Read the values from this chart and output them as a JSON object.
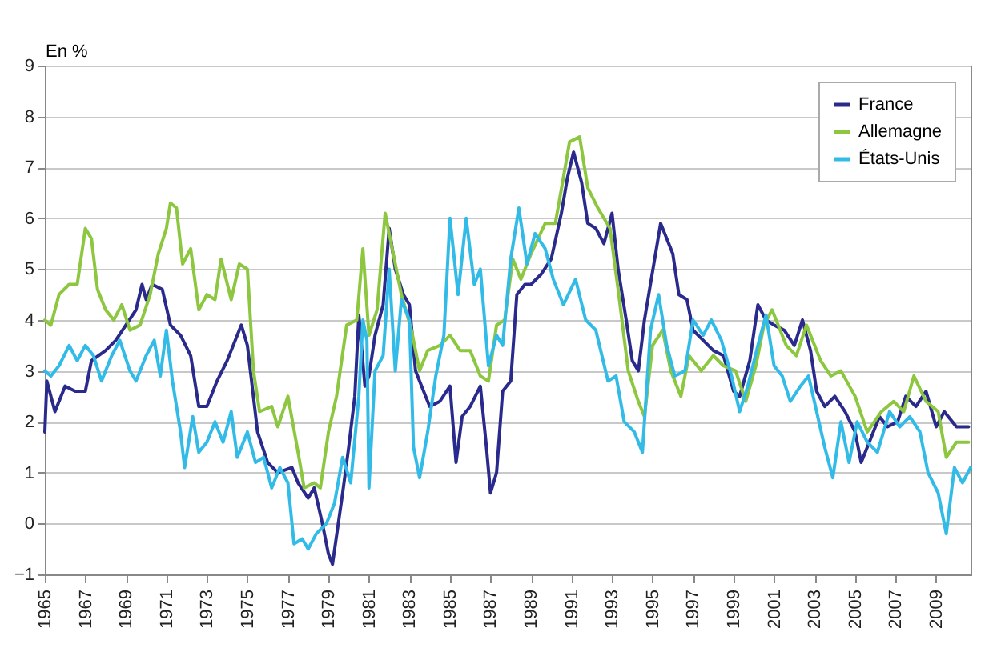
{
  "chart_data": {
    "type": "line",
    "ylabel": "En %",
    "xlim": [
      1965,
      2010.7
    ],
    "xticks": [
      1965,
      1967,
      1969,
      1971,
      1973,
      1975,
      1977,
      1979,
      1981,
      1983,
      1985,
      1987,
      1989,
      1991,
      1993,
      1995,
      1997,
      1999,
      2001,
      2003,
      2005,
      2007,
      2009
    ],
    "ylim": [
      -1,
      9
    ],
    "yticks": [
      -1,
      0,
      1,
      2,
      3,
      4,
      5,
      6,
      7,
      8,
      9
    ],
    "grid": "y",
    "legend": "top right",
    "marker": "none",
    "line_style": "solid",
    "series": [
      {
        "name": "France",
        "color": "#2a2a8c",
        "x": [
          1965.0,
          1965.1,
          1965.5,
          1966,
          1966.5,
          1967,
          1967.3,
          1968,
          1968.5,
          1969,
          1969.5,
          1969.8,
          1970,
          1970.3,
          1970.8,
          1971.2,
          1971.7,
          1972.2,
          1972.6,
          1973,
          1973.5,
          1974,
          1974.5,
          1974.7,
          1975,
          1975.5,
          1976,
          1976.5,
          1977.2,
          1977.5,
          1978,
          1978.3,
          1978.7,
          1979,
          1979.2,
          1979.7,
          1980,
          1980.3,
          1980.5,
          1980.8,
          1981,
          1981.3,
          1981.7,
          1982,
          1982.3,
          1982.7,
          1983,
          1983.3,
          1983.6,
          1984,
          1984.5,
          1985,
          1985.3,
          1985.6,
          1986,
          1986.5,
          1986.8,
          1987,
          1987.3,
          1987.6,
          1988,
          1988.3,
          1988.7,
          1989,
          1989.5,
          1990,
          1990.5,
          1990.8,
          1991.1,
          1991.5,
          1991.8,
          1992.2,
          1992.6,
          1993,
          1993.3,
          1993.7,
          1994,
          1994.3,
          1994.6,
          1995.4,
          1995.8,
          1996,
          1996.3,
          1996.7,
          1997,
          1997.5,
          1998,
          1998.5,
          1999,
          1999.3,
          1999.8,
          2000.2,
          2000.6,
          2001,
          2001.5,
          2002,
          2002.4,
          2002.8,
          2003.1,
          2003.5,
          2004,
          2004.5,
          2005,
          2005.3,
          2005.7,
          2006.2,
          2006.6,
          2007.1,
          2007.5,
          2008,
          2008.5,
          2009,
          2009.4,
          2010,
          2010.6
        ],
        "values": [
          1.8,
          2.8,
          2.2,
          2.7,
          2.6,
          2.6,
          3.2,
          3.4,
          3.6,
          3.9,
          4.2,
          4.7,
          4.4,
          4.7,
          4.6,
          3.9,
          3.7,
          3.3,
          2.3,
          2.3,
          2.8,
          3.2,
          3.7,
          3.9,
          3.5,
          1.8,
          1.2,
          1.0,
          1.1,
          0.8,
          0.5,
          0.7,
          0.0,
          -0.6,
          -0.8,
          0.6,
          1.5,
          2.5,
          4.1,
          2.7,
          2.9,
          3.7,
          4.3,
          5.8,
          5.0,
          4.5,
          4.3,
          3.0,
          2.7,
          2.3,
          2.4,
          2.7,
          1.2,
          2.1,
          2.3,
          2.7,
          1.5,
          0.6,
          1.0,
          2.6,
          2.8,
          4.5,
          4.7,
          4.7,
          4.9,
          5.2,
          6.1,
          6.8,
          7.3,
          6.7,
          5.9,
          5.8,
          5.5,
          6.1,
          5.0,
          4.0,
          3.2,
          3.0,
          4.0,
          5.9,
          5.5,
          5.3,
          4.5,
          4.4,
          3.8,
          3.6,
          3.4,
          3.3,
          2.6,
          2.5,
          3.2,
          4.3,
          4.0,
          3.9,
          3.8,
          3.5,
          4.0,
          3.4,
          2.6,
          2.3,
          2.5,
          2.2,
          1.8,
          1.2,
          1.6,
          2.1,
          1.9,
          2.0,
          2.5,
          2.3,
          2.6,
          1.9,
          2.2,
          1.9,
          1.9
        ]
      },
      {
        "name": "Allemagne",
        "color": "#8dc63f",
        "x": [
          1965.0,
          1965.3,
          1965.7,
          1966.2,
          1966.6,
          1967,
          1967.3,
          1967.6,
          1968,
          1968.4,
          1968.8,
          1969.2,
          1969.7,
          1970.2,
          1970.6,
          1971,
          1971.2,
          1971.5,
          1971.8,
          1972.2,
          1972.6,
          1973,
          1973.4,
          1973.7,
          1974.2,
          1974.6,
          1975,
          1975.3,
          1975.6,
          1976.2,
          1976.5,
          1977,
          1977.5,
          1977.8,
          1978.3,
          1978.6,
          1979,
          1979.4,
          1979.9,
          1980.4,
          1980.7,
          1981,
          1981.4,
          1981.8,
          1982.2,
          1982.6,
          1983.1,
          1983.5,
          1983.9,
          1984.5,
          1985,
          1985.5,
          1986,
          1986.5,
          1986.9,
          1987.3,
          1987.7,
          1988.1,
          1988.5,
          1989,
          1989.7,
          1990.2,
          1990.6,
          1990.9,
          1991.4,
          1991.8,
          1992.3,
          1992.9,
          1993.3,
          1993.8,
          1994.3,
          1994.6,
          1995,
          1995.5,
          1995.9,
          1996.4,
          1996.8,
          1997.4,
          1998,
          1998.5,
          1999.1,
          1999.6,
          2000.1,
          2000.5,
          2000.9,
          2001.6,
          2002.1,
          2002.6,
          2003.3,
          2003.8,
          2004.3,
          2005,
          2005.6,
          2006.3,
          2006.9,
          2007.4,
          2007.9,
          2008.5,
          2009.1,
          2009.5,
          2010,
          2010.6
        ],
        "values": [
          4.0,
          3.9,
          4.5,
          4.7,
          4.7,
          5.8,
          5.6,
          4.6,
          4.2,
          4.0,
          4.3,
          3.8,
          3.9,
          4.5,
          5.3,
          5.8,
          6.3,
          6.2,
          5.1,
          5.4,
          4.2,
          4.5,
          4.4,
          5.2,
          4.4,
          5.1,
          5.0,
          3.0,
          2.2,
          2.3,
          1.9,
          2.5,
          1.4,
          0.7,
          0.8,
          0.7,
          1.8,
          2.5,
          3.9,
          4.0,
          5.4,
          3.7,
          4.2,
          6.1,
          5.3,
          4.5,
          3.8,
          3.0,
          3.4,
          3.5,
          3.7,
          3.4,
          3.4,
          2.9,
          2.8,
          3.9,
          4.0,
          5.2,
          4.8,
          5.3,
          5.9,
          5.9,
          6.8,
          7.5,
          7.6,
          6.6,
          6.2,
          5.8,
          4.6,
          3.0,
          2.4,
          2.1,
          3.5,
          3.8,
          3.0,
          2.5,
          3.3,
          3.0,
          3.3,
          3.1,
          3.0,
          2.4,
          3.1,
          3.9,
          4.2,
          3.5,
          3.3,
          3.9,
          3.2,
          2.9,
          3.0,
          2.5,
          1.8,
          2.2,
          2.4,
          2.2,
          2.9,
          2.4,
          2.2,
          1.3,
          1.6,
          1.6
        ]
      },
      {
        "name": "États-Unis",
        "color": "#33bbe8",
        "x": [
          1965,
          1965.3,
          1965.7,
          1966.2,
          1966.6,
          1967,
          1967.4,
          1967.8,
          1968.3,
          1968.7,
          1969.2,
          1969.5,
          1970,
          1970.4,
          1970.7,
          1971,
          1971.3,
          1971.7,
          1971.9,
          1972.3,
          1972.6,
          1973,
          1973.4,
          1973.8,
          1974.2,
          1974.5,
          1975,
          1975.4,
          1975.8,
          1976.2,
          1976.6,
          1977,
          1977.3,
          1977.7,
          1978,
          1978.4,
          1978.9,
          1979.3,
          1979.7,
          1980.1,
          1980.5,
          1980.7,
          1980.9,
          1981,
          1981.3,
          1981.7,
          1982,
          1982.3,
          1982.6,
          1983,
          1983.2,
          1983.5,
          1983.9,
          1984.3,
          1984.7,
          1985,
          1985.4,
          1985.8,
          1986.2,
          1986.5,
          1986.9,
          1987.3,
          1987.6,
          1988,
          1988.4,
          1988.8,
          1989.2,
          1989.7,
          1990.1,
          1990.6,
          1991.2,
          1991.7,
          1992.2,
          1992.8,
          1993.2,
          1993.6,
          1994.1,
          1994.5,
          1994.9,
          1995.3,
          1995.7,
          1996.1,
          1996.6,
          1997,
          1997.5,
          1997.9,
          1998.4,
          1998.9,
          1999.3,
          1999.7,
          2000.2,
          2000.6,
          2001,
          2001.4,
          2001.8,
          2002.3,
          2002.7,
          2003.1,
          2003.5,
          2003.9,
          2004.3,
          2004.7,
          2005.1,
          2005.6,
          2006.1,
          2006.7,
          2007.2,
          2007.7,
          2008.2,
          2008.6,
          2009.1,
          2009.5,
          2009.9,
          2010.3,
          2010.7
        ],
        "values": [
          3.0,
          2.9,
          3.1,
          3.5,
          3.2,
          3.5,
          3.3,
          2.8,
          3.3,
          3.6,
          3.0,
          2.8,
          3.3,
          3.6,
          2.9,
          3.8,
          2.8,
          1.8,
          1.1,
          2.1,
          1.4,
          1.6,
          2.0,
          1.6,
          2.2,
          1.3,
          1.8,
          1.2,
          1.3,
          0.7,
          1.1,
          0.8,
          -0.4,
          -0.3,
          -0.5,
          -0.2,
          0.0,
          0.4,
          1.3,
          0.8,
          2.5,
          4.0,
          3.6,
          0.7,
          3.0,
          3.3,
          5.0,
          3.0,
          4.4,
          4.0,
          1.5,
          0.9,
          1.8,
          2.9,
          3.7,
          6.0,
          4.5,
          6.0,
          4.7,
          5.0,
          3.1,
          3.7,
          3.5,
          5.2,
          6.2,
          5.1,
          5.7,
          5.4,
          4.8,
          4.3,
          4.8,
          4.0,
          3.8,
          2.8,
          2.9,
          2.0,
          1.8,
          1.4,
          3.8,
          4.5,
          3.5,
          2.9,
          3.0,
          4.0,
          3.7,
          4.0,
          3.6,
          2.9,
          2.2,
          2.7,
          3.5,
          4.1,
          3.1,
          2.9,
          2.4,
          2.7,
          2.9,
          2.2,
          1.5,
          0.9,
          2.0,
          1.2,
          2.0,
          1.6,
          1.4,
          2.2,
          1.9,
          2.1,
          1.8,
          1.0,
          0.6,
          -0.2,
          1.1,
          0.8,
          1.1
        ]
      }
    ]
  }
}
